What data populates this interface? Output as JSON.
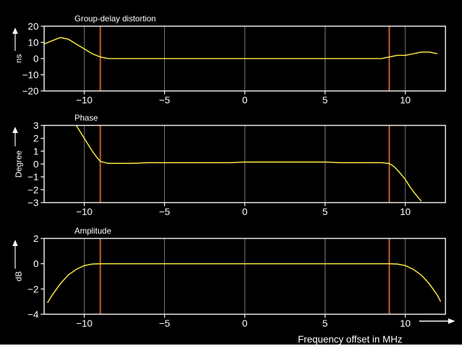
{
  "figure": {
    "xaxis_label": "Frequency offset in MHz",
    "colors": {
      "background": "#000000",
      "frame": "#ffffff",
      "grid": "#9a9a9a",
      "trace": "#f0e040",
      "marker": "#c8642a"
    }
  },
  "chart_data": [
    {
      "type": "line",
      "title": "Group-delay distortion",
      "xlabel": "",
      "ylabel": "ns",
      "xlim": [
        -12.5,
        12.5
      ],
      "ylim": [
        -20,
        20
      ],
      "xticks": [
        -10,
        -5,
        0,
        5,
        10
      ],
      "yticks": [
        20,
        10,
        0,
        -10,
        -20
      ],
      "ytick_labels": [
        "20",
        "10",
        "0",
        "−10",
        "−20"
      ],
      "xtick_labels": [
        "−10",
        "−5",
        "0",
        "5",
        "10"
      ],
      "grid": true,
      "markers_x": [
        -9,
        9
      ],
      "series": [
        {
          "x": [
            -12.5,
            -12,
            -11.5,
            -11,
            -10.5,
            -10,
            -9.5,
            -9,
            -8.5,
            -8,
            -7,
            -6,
            -5,
            -4,
            -3,
            -2,
            -1,
            0,
            1,
            2,
            3,
            4,
            5,
            6,
            7,
            8,
            8.5,
            9,
            9.5,
            10,
            10.5,
            11,
            11.5,
            12
          ],
          "values": [
            9,
            11,
            13,
            12,
            9,
            6,
            3,
            1,
            0,
            0,
            0,
            0,
            0,
            0,
            0,
            0,
            0,
            0,
            0,
            0,
            0,
            0,
            0,
            0,
            0,
            0,
            0,
            1,
            2,
            2,
            3,
            4,
            4,
            3
          ]
        }
      ]
    },
    {
      "type": "line",
      "title": "Phase",
      "xlabel": "",
      "ylabel": "Degree",
      "xlim": [
        -12.5,
        12.5
      ],
      "ylim": [
        -3,
        3
      ],
      "xticks": [
        -10,
        -5,
        0,
        5,
        10
      ],
      "yticks": [
        3,
        2,
        1,
        0,
        -1,
        -2,
        -3
      ],
      "ytick_labels": [
        "3",
        "2",
        "1",
        "0",
        "−1",
        "−2",
        "−3"
      ],
      "xtick_labels": [
        "−10",
        "−5",
        "0",
        "5",
        "10"
      ],
      "grid": true,
      "markers_x": [
        -9,
        9
      ],
      "series": [
        {
          "x": [
            -10.5,
            -10.2,
            -10,
            -9.7,
            -9.5,
            -9.2,
            -9,
            -8.5,
            -8,
            -7,
            -6,
            -5,
            -4,
            -3,
            -2,
            -1,
            0,
            1,
            2,
            3,
            4,
            5,
            6,
            7,
            8,
            8.5,
            9,
            9.3,
            9.6,
            10,
            10.3,
            10.6,
            11
          ],
          "values": [
            3,
            2.4,
            2.0,
            1.4,
            1.0,
            0.5,
            0.2,
            0.05,
            0.05,
            0.05,
            0.1,
            0.1,
            0.1,
            0.1,
            0.1,
            0.1,
            0.15,
            0.15,
            0.15,
            0.15,
            0.15,
            0.15,
            0.1,
            0.1,
            0.1,
            0.1,
            0.05,
            -0.2,
            -0.6,
            -1.2,
            -1.8,
            -2.3,
            -2.9
          ]
        }
      ]
    },
    {
      "type": "line",
      "title": "Amplitude",
      "xlabel": "",
      "ylabel": "dB",
      "xlim": [
        -12.5,
        12.5
      ],
      "ylim": [
        -4,
        2
      ],
      "xticks": [
        -10,
        -5,
        0,
        5,
        10
      ],
      "yticks": [
        2,
        0,
        -2,
        -4
      ],
      "ytick_labels": [
        "2",
        "0",
        "−2",
        "−4"
      ],
      "xtick_labels": [
        "−10",
        "−5",
        "0",
        "5",
        "10"
      ],
      "grid": true,
      "markers_x": [
        -9,
        9
      ],
      "series": [
        {
          "x": [
            -12.3,
            -12,
            -11.5,
            -11,
            -10.5,
            -10,
            -9.5,
            -9,
            -8,
            -5,
            0,
            5,
            8,
            9,
            9.5,
            10,
            10.5,
            11,
            11.5,
            12,
            12.2
          ],
          "values": [
            -3.1,
            -2.5,
            -1.6,
            -0.9,
            -0.45,
            -0.15,
            -0.03,
            0,
            0,
            0,
            0,
            0,
            0,
            0,
            -0.03,
            -0.15,
            -0.45,
            -0.9,
            -1.6,
            -2.5,
            -3.0
          ]
        }
      ]
    }
  ]
}
